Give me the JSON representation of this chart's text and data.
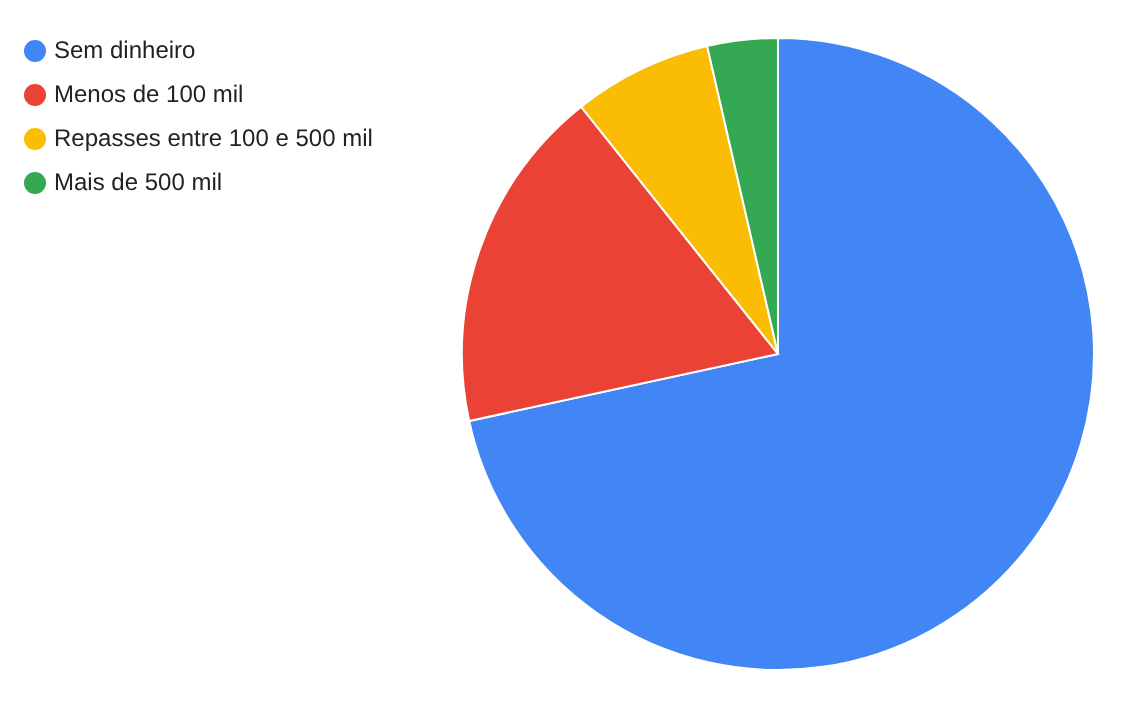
{
  "chart_data": {
    "type": "pie",
    "categories": [
      "Sem dinheiro",
      "Menos de 100 mil",
      "Repasses entre 100 e 500 mil",
      "Mais de 500 mil"
    ],
    "values": [
      71.6,
      17.7,
      7.1,
      3.6
    ],
    "colors": [
      "#4285f4",
      "#ea4335",
      "#fbbc04",
      "#34a853"
    ],
    "legend": "top left"
  }
}
